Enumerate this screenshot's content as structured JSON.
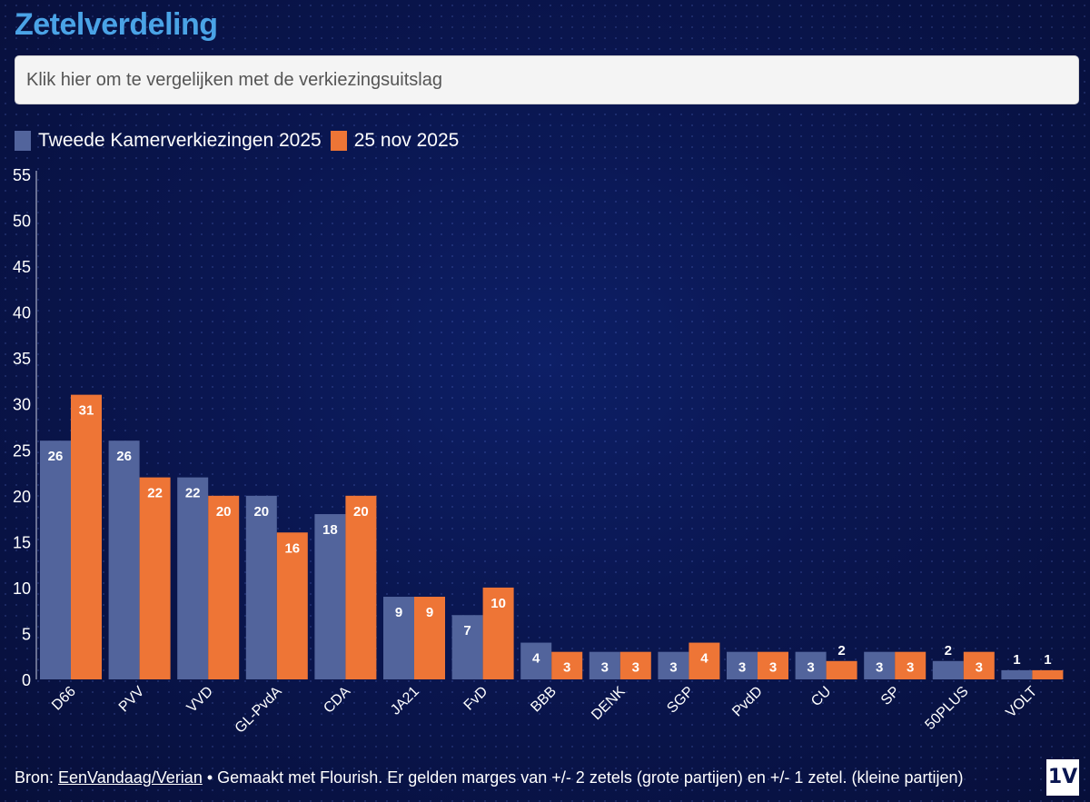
{
  "title": "Zetelverdeling",
  "compare": {
    "placeholder": "Klik hier om te vergelijken met de verkiezingsuitslag"
  },
  "colors": {
    "series1": "#52649c",
    "series2": "#ee7536",
    "title": "#4aa3e6"
  },
  "chart_data": {
    "type": "bar",
    "categories": [
      "D66",
      "PVV",
      "VVD",
      "GL-PvdA",
      "CDA",
      "JA21",
      "FvD",
      "BBB",
      "DENK",
      "SGP",
      "PvdD",
      "CU",
      "SP",
      "50PLUS",
      "VOLT"
    ],
    "series": [
      {
        "name": "Tweede Kamerverkiezingen 2025",
        "values": [
          26,
          26,
          22,
          20,
          18,
          9,
          7,
          4,
          3,
          3,
          3,
          3,
          3,
          2,
          1
        ]
      },
      {
        "name": "25 nov 2025",
        "values": [
          31,
          22,
          20,
          16,
          20,
          9,
          10,
          3,
          3,
          4,
          3,
          2,
          3,
          3,
          1
        ]
      }
    ],
    "ylim": [
      0,
      55
    ],
    "yticks": [
      0,
      5,
      10,
      15,
      20,
      25,
      30,
      35,
      40,
      45,
      50,
      55
    ],
    "grid": false,
    "legend": "top-left"
  },
  "footer": {
    "prefix": "Bron: ",
    "link": "EenVandaag/Verian",
    "suffix": " • Gemaakt met Flourish. Er gelden marges van +/- 2 zetels (grote partijen) en +/- 1 zetel. (kleine partijen)"
  },
  "logo": "1V"
}
